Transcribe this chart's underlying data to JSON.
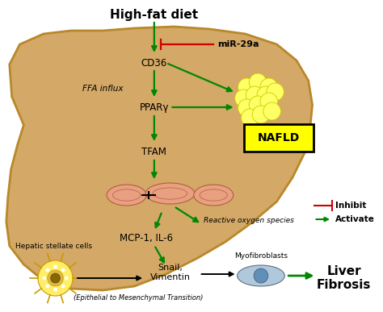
{
  "bg_color": "#ffffff",
  "liver_color": "#D4A866",
  "liver_edge_color": "#B8882A",
  "title": "High-fat diet",
  "nafld_box_color": "#FFFF00",
  "nafld_text": "NAFLD",
  "liver_fibrosis_text": "Liver\nFibrosis",
  "green": "#008800",
  "red": "#CC0000",
  "black": "#000000",
  "fat_color": "#FFFF66",
  "fat_edge": "#CCCC00",
  "mito_color": "#E8A080",
  "mito_edge": "#B06040",
  "stellate_color": "#FFEE66",
  "stellate_edge": "#CC9900",
  "myo_color": "#B0C8DC",
  "myo_edge": "#607080"
}
